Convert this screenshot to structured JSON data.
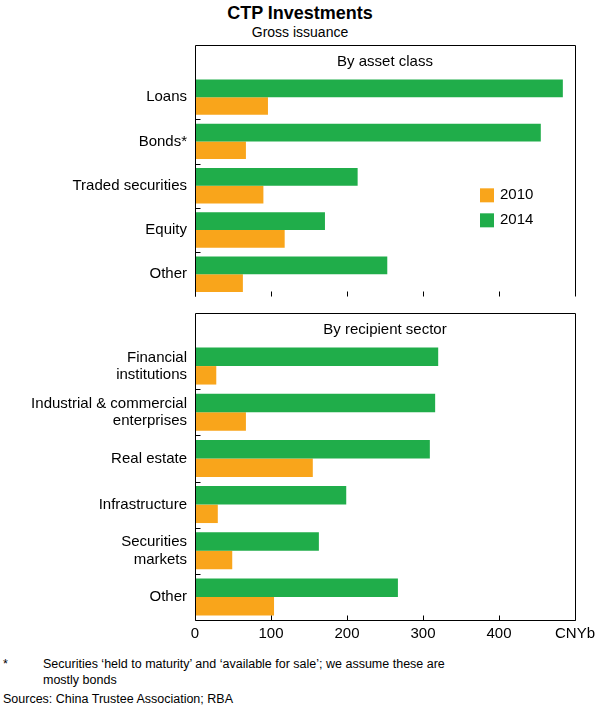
{
  "title": "CTP Investments",
  "subtitle": "Gross issuance",
  "footnote": {
    "marker": "*",
    "text": "Securities ‘held to maturity’ and ‘available for sale’; we assume these are mostly bonds"
  },
  "source": "Sources: China Trustee Association; RBA",
  "chart_data": [
    {
      "type": "bar",
      "orientation": "horizontal",
      "title": "By asset class",
      "categories": [
        "Loans",
        "Bonds*",
        "Traded securities",
        "Equity",
        "Other"
      ],
      "series": [
        {
          "name": "2010",
          "color": "#f9a51b",
          "values": [
            96,
            67,
            90,
            118,
            63
          ]
        },
        {
          "name": "2014",
          "color": "#20ad4a",
          "values": [
            484,
            455,
            214,
            171,
            253
          ]
        }
      ],
      "xlim": [
        0,
        500
      ],
      "xticks": [
        0,
        100,
        200,
        300,
        400
      ],
      "grid": false,
      "legend": "right",
      "tick_labels": "y"
    },
    {
      "type": "bar",
      "orientation": "horizontal",
      "title": "By recipient sector",
      "categories": [
        "Financial\ninstitutions",
        "Industrial & commercial\nenterprises",
        "Real estate",
        "Infrastructure",
        "Securities\nmarkets",
        "Other"
      ],
      "series": [
        {
          "name": "2010",
          "color": "#f9a51b",
          "values": [
            28,
            67,
            155,
            30,
            49,
            104
          ]
        },
        {
          "name": "2014",
          "color": "#20ad4a",
          "values": [
            320,
            316,
            309,
            199,
            163,
            267
          ]
        }
      ],
      "xlim": [
        0,
        500
      ],
      "xticks": [
        0,
        100,
        200,
        300,
        400,
        {
          "value": 500,
          "label": "CNYb"
        }
      ],
      "grid": false
    }
  ]
}
